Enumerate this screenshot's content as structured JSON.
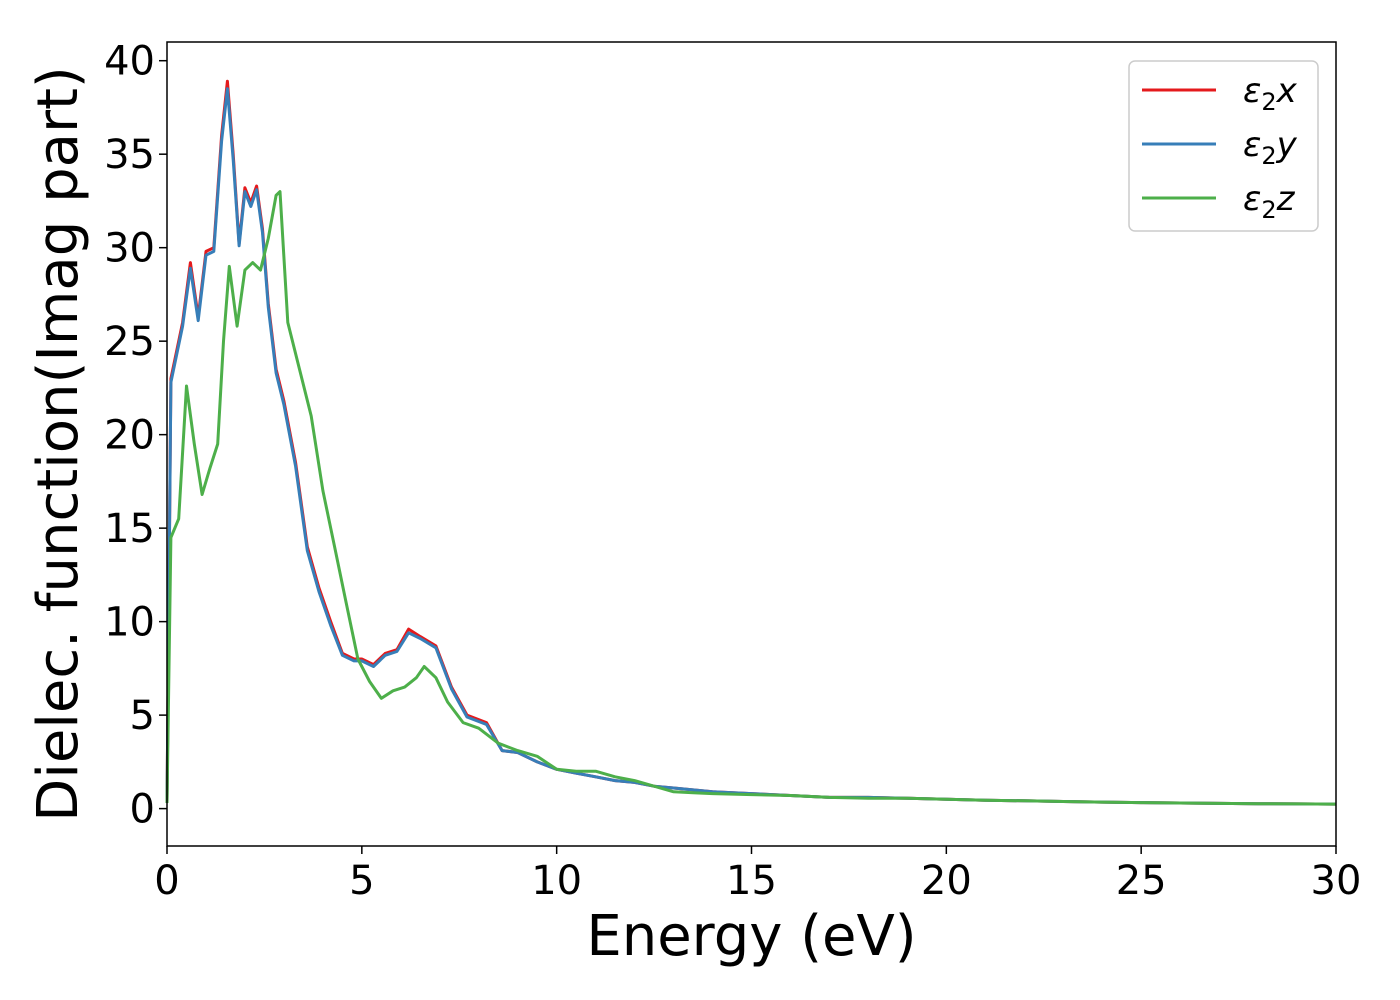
{
  "chart_data": {
    "type": "line",
    "xlabel": "Energy (eV)",
    "ylabel": "Dielec. function(Imag part)",
    "xlim": [
      0,
      30
    ],
    "ylim": [
      -2,
      41
    ],
    "xticks": [
      "0",
      "5",
      "10",
      "15",
      "20",
      "25",
      "30"
    ],
    "yticks": [
      "0",
      "5",
      "10",
      "15",
      "20",
      "25",
      "30",
      "35",
      "40"
    ],
    "grid": false,
    "legend_position": "top-right",
    "series": [
      {
        "name": "ε₂x",
        "name_parts": {
          "base": "ε",
          "sub": "2",
          "suffix": "x"
        },
        "color": "#e41a1c",
        "x": [
          0,
          0.1,
          0.2,
          0.4,
          0.6,
          0.8,
          1.0,
          1.2,
          1.4,
          1.55,
          1.7,
          1.85,
          2.0,
          2.15,
          2.3,
          2.45,
          2.6,
          2.8,
          3.0,
          3.3,
          3.6,
          3.9,
          4.2,
          4.5,
          4.8,
          5.0,
          5.3,
          5.6,
          5.9,
          6.2,
          6.5,
          6.9,
          7.3,
          7.7,
          8.2,
          8.6,
          9.0,
          9.5,
          10.0,
          10.5,
          11.0,
          11.5,
          12.0,
          12.5,
          13.0,
          13.5,
          14.0,
          15.0,
          16.0,
          17.0,
          18.0,
          19.0,
          20.0,
          21.0,
          22.0,
          23.0,
          24.0,
          25.0,
          26.0,
          27.0,
          28.0,
          29.0,
          30.0
        ],
        "y": [
          0.3,
          23.0,
          24.0,
          26.0,
          29.2,
          26.3,
          29.8,
          30.0,
          36.0,
          38.9,
          35.0,
          30.2,
          33.2,
          32.4,
          33.3,
          31.0,
          27.0,
          23.5,
          21.8,
          18.5,
          14.0,
          11.8,
          10.0,
          8.3,
          8.0,
          8.0,
          7.7,
          8.3,
          8.5,
          9.6,
          9.2,
          8.7,
          6.5,
          5.0,
          4.6,
          3.1,
          3.0,
          2.5,
          2.1,
          1.9,
          1.7,
          1.5,
          1.4,
          1.2,
          1.1,
          1.0,
          0.9,
          0.8,
          0.7,
          0.6,
          0.6,
          0.55,
          0.5,
          0.45,
          0.42,
          0.38,
          0.35,
          0.32,
          0.3,
          0.28,
          0.26,
          0.25,
          0.24
        ]
      },
      {
        "name": "ε₂y",
        "name_parts": {
          "base": "ε",
          "sub": "2",
          "suffix": "y"
        },
        "color": "#377eb8",
        "x": [
          0,
          0.1,
          0.2,
          0.4,
          0.6,
          0.8,
          1.0,
          1.2,
          1.4,
          1.55,
          1.7,
          1.85,
          2.0,
          2.15,
          2.3,
          2.45,
          2.6,
          2.8,
          3.0,
          3.3,
          3.6,
          3.9,
          4.2,
          4.5,
          4.8,
          5.0,
          5.3,
          5.6,
          5.9,
          6.2,
          6.5,
          6.9,
          7.3,
          7.7,
          8.2,
          8.6,
          9.0,
          9.5,
          10.0,
          10.5,
          11.0,
          11.5,
          12.0,
          12.5,
          13.0,
          13.5,
          14.0,
          15.0,
          16.0,
          17.0,
          18.0,
          19.0,
          20.0,
          21.0,
          22.0,
          23.0,
          24.0,
          25.0,
          26.0,
          27.0,
          28.0,
          29.0,
          30.0
        ],
        "y": [
          0.3,
          22.8,
          23.8,
          25.8,
          28.9,
          26.1,
          29.6,
          29.8,
          35.7,
          38.5,
          34.7,
          30.1,
          33.0,
          32.2,
          33.1,
          30.8,
          26.8,
          23.3,
          21.6,
          18.3,
          13.8,
          11.6,
          9.8,
          8.2,
          7.9,
          7.9,
          7.6,
          8.2,
          8.4,
          9.4,
          9.1,
          8.6,
          6.4,
          4.9,
          4.5,
          3.1,
          3.0,
          2.5,
          2.1,
          1.9,
          1.7,
          1.5,
          1.4,
          1.2,
          1.1,
          1.0,
          0.9,
          0.8,
          0.7,
          0.6,
          0.6,
          0.55,
          0.5,
          0.45,
          0.42,
          0.38,
          0.35,
          0.32,
          0.3,
          0.28,
          0.26,
          0.25,
          0.24
        ]
      },
      {
        "name": "ε₂z",
        "name_parts": {
          "base": "ε",
          "sub": "2",
          "suffix": "z"
        },
        "color": "#4daf4a",
        "x": [
          0,
          0.1,
          0.3,
          0.5,
          0.7,
          0.9,
          1.1,
          1.3,
          1.45,
          1.6,
          1.8,
          2.0,
          2.2,
          2.4,
          2.6,
          2.8,
          2.9,
          3.1,
          3.4,
          3.7,
          4.0,
          4.3,
          4.6,
          4.9,
          5.2,
          5.5,
          5.8,
          6.1,
          6.4,
          6.6,
          6.9,
          7.2,
          7.6,
          8.0,
          8.5,
          9.0,
          9.5,
          10.0,
          10.5,
          11.0,
          11.5,
          12.0,
          12.5,
          13.0,
          13.5,
          14.0,
          15.0,
          16.0,
          17.0,
          18.0,
          19.0,
          20.0,
          21.0,
          22.0,
          23.0,
          24.0,
          25.0,
          26.0,
          27.0,
          28.0,
          29.0,
          30.0
        ],
        "y": [
          0.3,
          14.5,
          15.5,
          22.6,
          19.5,
          16.8,
          18.2,
          19.5,
          25.0,
          29.0,
          25.8,
          28.8,
          29.2,
          28.8,
          30.5,
          32.8,
          33.0,
          26.0,
          23.5,
          21.0,
          17.0,
          14.0,
          11.0,
          8.0,
          6.8,
          5.9,
          6.3,
          6.5,
          7.0,
          7.6,
          7.0,
          5.7,
          4.6,
          4.3,
          3.5,
          3.1,
          2.8,
          2.1,
          2.0,
          2.0,
          1.7,
          1.5,
          1.2,
          0.9,
          0.85,
          0.8,
          0.75,
          0.7,
          0.6,
          0.55,
          0.55,
          0.5,
          0.45,
          0.42,
          0.38,
          0.35,
          0.32,
          0.3,
          0.28,
          0.26,
          0.25,
          0.24
        ]
      }
    ]
  }
}
